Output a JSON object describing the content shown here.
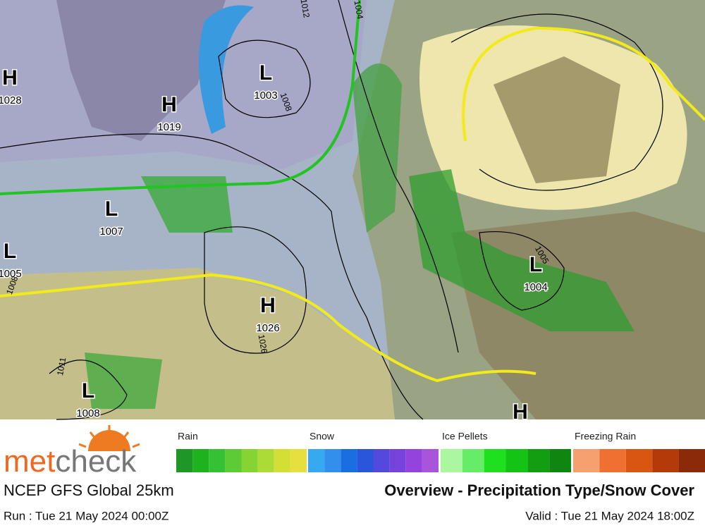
{
  "brand": {
    "part1": "met",
    "part2": "check"
  },
  "footer": {
    "model": "NCEP GFS Global 25km",
    "title": "Overview - Precipitation Type/Snow Cover",
    "run": "Run : Tue 21 May 2024 00:00Z",
    "valid": "Valid : Tue 21 May 2024 18:00Z"
  },
  "pressure_centers": [
    {
      "symbol": "H",
      "value": "1028"
    },
    {
      "symbol": "H",
      "value": "1019"
    },
    {
      "symbol": "L",
      "value": "1003"
    },
    {
      "symbol": "L",
      "value": "1007"
    },
    {
      "symbol": "L",
      "value": "1005"
    },
    {
      "symbol": "H",
      "value": "1026"
    },
    {
      "symbol": "L",
      "value": "1008"
    },
    {
      "symbol": "L",
      "value": "1004"
    },
    {
      "symbol": "H"
    }
  ],
  "isobar_labels": [
    "1012",
    "1004",
    "1008",
    "1011",
    "1026",
    "1005",
    "1008"
  ],
  "legend": [
    {
      "label": "Rain",
      "colors": [
        "#1e9628",
        "#1fb21f",
        "#34c234",
        "#5ccb34",
        "#86d334",
        "#abdb34",
        "#d3df34",
        "#e6df40"
      ]
    },
    {
      "label": "Snow",
      "colors": [
        "#36aaf0",
        "#3290ec",
        "#1a6ee0",
        "#2a56dc",
        "#5548dc",
        "#7644dc",
        "#9444dc",
        "#a855dc"
      ]
    },
    {
      "label": "Ice Pellets",
      "colors": [
        "#aaf7a0",
        "#66ec66",
        "#1ee01e",
        "#14c414",
        "#119e11",
        "#0f860f"
      ]
    },
    {
      "label": "Freezing Rain",
      "colors": [
        "#f6a070",
        "#ef7030",
        "#d85512",
        "#b43a0a",
        "#8a2a08"
      ]
    }
  ]
}
